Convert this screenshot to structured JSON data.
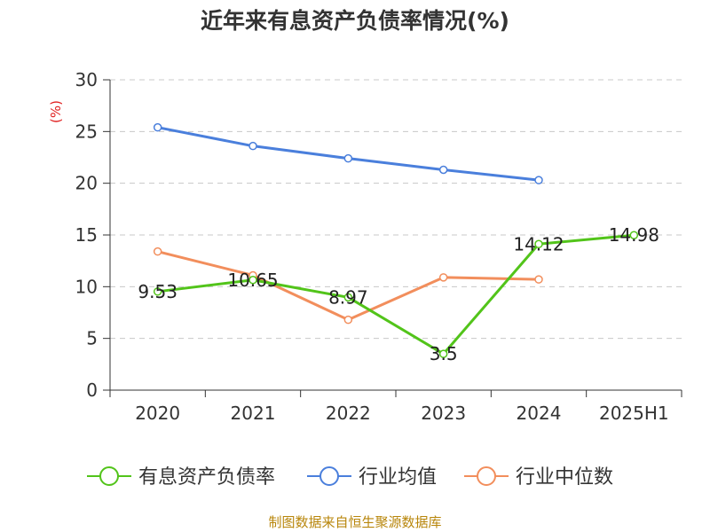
{
  "chart_data": {
    "type": "line",
    "title": "近年来有息资产负债率情况(%)",
    "ylabel": "(%)",
    "categories": [
      "2020",
      "2021",
      "2022",
      "2023",
      "2024",
      "2025H1"
    ],
    "ylim": [
      0,
      30
    ],
    "yticks": [
      0,
      5,
      10,
      15,
      20,
      25,
      30
    ],
    "grid": true,
    "legend_position": "bottom",
    "series": [
      {
        "name": "有息资产负债率",
        "color": "#52c41a",
        "values": [
          9.53,
          10.65,
          8.97,
          3.5,
          14.12,
          14.98
        ],
        "labels": [
          "9.53",
          "10.65",
          "8.97",
          "3.5",
          "14.12",
          "14.98"
        ]
      },
      {
        "name": "行业均值",
        "color": "#4a7fdc",
        "values": [
          25.4,
          23.6,
          22.4,
          21.3,
          20.3,
          null
        ]
      },
      {
        "name": "行业中位数",
        "color": "#f28e5c",
        "values": [
          13.4,
          11.1,
          6.8,
          10.9,
          10.7,
          null
        ]
      }
    ]
  },
  "footer": {
    "source": "制图数据来自恒生聚源数据库"
  }
}
